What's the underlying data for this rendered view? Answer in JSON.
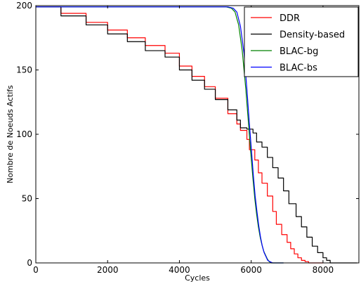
{
  "chart_data": {
    "type": "line",
    "title": "",
    "xlabel": "Cycles",
    "ylabel": "Nombre de Noeuds Actifs",
    "xlim": [
      0,
      9000
    ],
    "ylim": [
      0,
      200
    ],
    "xticks": [
      0,
      2000,
      4000,
      6000,
      8000
    ],
    "yticks": [
      0,
      50,
      100,
      150,
      200
    ],
    "xtick_labels": [
      "0",
      "2000",
      "4000",
      "6000",
      "8000"
    ],
    "ytick_labels": [
      "0",
      "50",
      "100",
      "150",
      "200"
    ],
    "grid": false,
    "legend_position": "top-right",
    "series": [
      {
        "name": "DDR",
        "color": "#ff0000",
        "step": true,
        "points": [
          [
            0,
            199
          ],
          [
            700,
            199
          ],
          [
            700,
            194
          ],
          [
            1400,
            194
          ],
          [
            1400,
            187
          ],
          [
            2000,
            187
          ],
          [
            2000,
            181
          ],
          [
            2550,
            181
          ],
          [
            2550,
            175
          ],
          [
            3050,
            175
          ],
          [
            3050,
            169
          ],
          [
            3600,
            169
          ],
          [
            3600,
            163
          ],
          [
            4000,
            163
          ],
          [
            4000,
            153
          ],
          [
            4350,
            153
          ],
          [
            4350,
            145
          ],
          [
            4700,
            145
          ],
          [
            4700,
            137
          ],
          [
            5000,
            137
          ],
          [
            5000,
            128
          ],
          [
            5350,
            128
          ],
          [
            5350,
            116
          ],
          [
            5600,
            116
          ],
          [
            5600,
            108
          ],
          [
            5700,
            108
          ],
          [
            5700,
            103
          ],
          [
            5880,
            103
          ],
          [
            5880,
            96
          ],
          [
            5950,
            96
          ],
          [
            5950,
            88
          ],
          [
            6100,
            88
          ],
          [
            6100,
            80
          ],
          [
            6200,
            80
          ],
          [
            6200,
            70
          ],
          [
            6300,
            70
          ],
          [
            6300,
            62
          ],
          [
            6450,
            62
          ],
          [
            6450,
            52
          ],
          [
            6600,
            52
          ],
          [
            6600,
            40
          ],
          [
            6700,
            40
          ],
          [
            6700,
            30
          ],
          [
            6850,
            30
          ],
          [
            6850,
            22
          ],
          [
            7000,
            22
          ],
          [
            7000,
            16
          ],
          [
            7100,
            16
          ],
          [
            7100,
            11
          ],
          [
            7200,
            11
          ],
          [
            7200,
            7
          ],
          [
            7300,
            7
          ],
          [
            7300,
            4
          ],
          [
            7400,
            4
          ],
          [
            7400,
            2
          ],
          [
            7500,
            2
          ],
          [
            7500,
            1
          ],
          [
            7600,
            1
          ],
          [
            7600,
            0
          ],
          [
            8000,
            0
          ]
        ]
      },
      {
        "name": "Density-based",
        "color": "#000000",
        "step": true,
        "points": [
          [
            0,
            199
          ],
          [
            700,
            199
          ],
          [
            700,
            192
          ],
          [
            1400,
            192
          ],
          [
            1400,
            185
          ],
          [
            2000,
            185
          ],
          [
            2000,
            178
          ],
          [
            2550,
            178
          ],
          [
            2550,
            172
          ],
          [
            3050,
            172
          ],
          [
            3050,
            165
          ],
          [
            3600,
            165
          ],
          [
            3600,
            160
          ],
          [
            4000,
            160
          ],
          [
            4000,
            150
          ],
          [
            4350,
            150
          ],
          [
            4350,
            142
          ],
          [
            4700,
            142
          ],
          [
            4700,
            135
          ],
          [
            5000,
            135
          ],
          [
            5000,
            127
          ],
          [
            5350,
            127
          ],
          [
            5350,
            119
          ],
          [
            5600,
            119
          ],
          [
            5600,
            111
          ],
          [
            5700,
            111
          ],
          [
            5700,
            105
          ],
          [
            5880,
            105
          ],
          [
            5880,
            104
          ],
          [
            6050,
            104
          ],
          [
            6050,
            101
          ],
          [
            6150,
            101
          ],
          [
            6150,
            94
          ],
          [
            6300,
            94
          ],
          [
            6300,
            90
          ],
          [
            6450,
            90
          ],
          [
            6450,
            82
          ],
          [
            6600,
            82
          ],
          [
            6600,
            74
          ],
          [
            6750,
            74
          ],
          [
            6750,
            66
          ],
          [
            6900,
            66
          ],
          [
            6900,
            56
          ],
          [
            7050,
            56
          ],
          [
            7050,
            46
          ],
          [
            7250,
            46
          ],
          [
            7250,
            36
          ],
          [
            7400,
            36
          ],
          [
            7400,
            28
          ],
          [
            7550,
            28
          ],
          [
            7550,
            20
          ],
          [
            7700,
            20
          ],
          [
            7700,
            13
          ],
          [
            7850,
            13
          ],
          [
            7850,
            8
          ],
          [
            8000,
            8
          ],
          [
            8000,
            4
          ],
          [
            8100,
            4
          ],
          [
            8100,
            2
          ],
          [
            8200,
            2
          ],
          [
            8200,
            0
          ],
          [
            8950,
            0
          ]
        ]
      },
      {
        "name": "BLAC-bg",
        "color": "#008000",
        "step": false,
        "points": [
          [
            0,
            199
          ],
          [
            5100,
            199
          ],
          [
            5300,
            199
          ],
          [
            5450,
            198
          ],
          [
            5550,
            195
          ],
          [
            5650,
            185
          ],
          [
            5750,
            165
          ],
          [
            5850,
            135
          ],
          [
            5920,
            110
          ],
          [
            5980,
            88
          ],
          [
            6050,
            65
          ],
          [
            6100,
            50
          ],
          [
            6150,
            38
          ],
          [
            6200,
            28
          ],
          [
            6250,
            20
          ],
          [
            6300,
            14
          ],
          [
            6350,
            9
          ],
          [
            6400,
            6
          ],
          [
            6450,
            3
          ],
          [
            6500,
            1
          ],
          [
            6560,
            0
          ],
          [
            6900,
            0
          ]
        ]
      },
      {
        "name": "BLAC-bs",
        "color": "#0000ff",
        "step": false,
        "points": [
          [
            0,
            199
          ],
          [
            5150,
            199
          ],
          [
            5350,
            199
          ],
          [
            5500,
            198
          ],
          [
            5600,
            195
          ],
          [
            5700,
            184
          ],
          [
            5800,
            163
          ],
          [
            5880,
            135
          ],
          [
            5950,
            108
          ],
          [
            6000,
            90
          ],
          [
            6060,
            68
          ],
          [
            6110,
            52
          ],
          [
            6160,
            40
          ],
          [
            6210,
            29
          ],
          [
            6260,
            20
          ],
          [
            6310,
            13
          ],
          [
            6360,
            8
          ],
          [
            6410,
            5
          ],
          [
            6460,
            2
          ],
          [
            6520,
            1
          ],
          [
            6600,
            0
          ],
          [
            6900,
            0
          ]
        ]
      }
    ]
  }
}
